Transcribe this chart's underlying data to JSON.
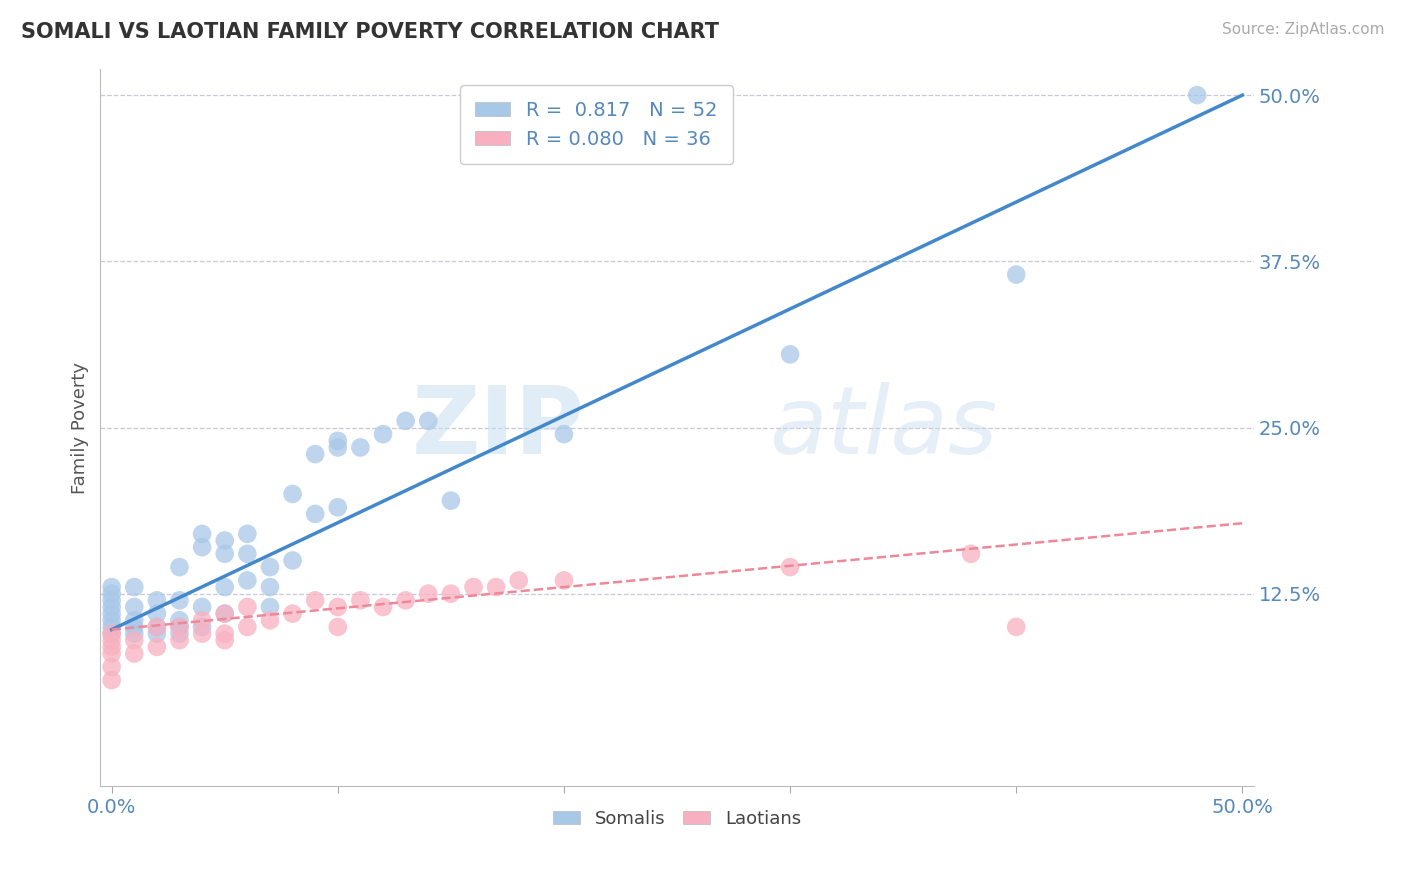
{
  "title": "SOMALI VS LAOTIAN FAMILY POVERTY CORRELATION CHART",
  "source_text": "Source: ZipAtlas.com",
  "ylabel": "Family Poverty",
  "xlim": [
    -0.005,
    0.505
  ],
  "ylim": [
    -0.02,
    0.52
  ],
  "ytick_positions": [
    0.125,
    0.25,
    0.375,
    0.5
  ],
  "ytick_labels": [
    "12.5%",
    "25.0%",
    "37.5%",
    "50.0%"
  ],
  "grid_color": "#c8c8d8",
  "background_color": "#ffffff",
  "somali_color": "#a8c8e8",
  "laotian_color": "#f8b0c0",
  "somali_line_color": "#4488cc",
  "laotian_line_color": "#ee8899",
  "somali_line_x0": 0.0,
  "somali_line_y0": 0.098,
  "somali_line_x1": 0.5,
  "somali_line_y1": 0.5,
  "laotian_line_x0": 0.0,
  "laotian_line_y0": 0.098,
  "laotian_line_x1": 0.5,
  "laotian_line_y1": 0.178,
  "R_somali": 0.817,
  "N_somali": 52,
  "R_laotian": 0.08,
  "N_laotian": 36,
  "watermark_zip": "ZIP",
  "watermark_atlas": "atlas",
  "tick_color": "#5588bb",
  "somali_scatter_x": [
    0.0,
    0.0,
    0.0,
    0.0,
    0.0,
    0.0,
    0.0,
    0.0,
    0.01,
    0.01,
    0.01,
    0.01,
    0.01,
    0.02,
    0.02,
    0.02,
    0.02,
    0.03,
    0.03,
    0.03,
    0.03,
    0.03,
    0.04,
    0.04,
    0.04,
    0.04,
    0.05,
    0.05,
    0.05,
    0.05,
    0.06,
    0.06,
    0.06,
    0.07,
    0.07,
    0.07,
    0.08,
    0.08,
    0.09,
    0.09,
    0.1,
    0.1,
    0.1,
    0.11,
    0.12,
    0.13,
    0.14,
    0.15,
    0.2,
    0.3,
    0.4,
    0.48
  ],
  "somali_scatter_y": [
    0.095,
    0.1,
    0.105,
    0.11,
    0.115,
    0.12,
    0.125,
    0.13,
    0.095,
    0.1,
    0.105,
    0.115,
    0.13,
    0.095,
    0.1,
    0.11,
    0.12,
    0.095,
    0.1,
    0.105,
    0.12,
    0.145,
    0.1,
    0.115,
    0.16,
    0.17,
    0.11,
    0.13,
    0.155,
    0.165,
    0.135,
    0.155,
    0.17,
    0.115,
    0.13,
    0.145,
    0.15,
    0.2,
    0.185,
    0.23,
    0.19,
    0.235,
    0.24,
    0.235,
    0.245,
    0.255,
    0.255,
    0.195,
    0.245,
    0.305,
    0.365,
    0.5
  ],
  "laotian_scatter_x": [
    0.0,
    0.0,
    0.0,
    0.0,
    0.0,
    0.0,
    0.01,
    0.01,
    0.02,
    0.02,
    0.03,
    0.03,
    0.04,
    0.04,
    0.05,
    0.05,
    0.05,
    0.06,
    0.06,
    0.07,
    0.08,
    0.09,
    0.1,
    0.1,
    0.11,
    0.12,
    0.13,
    0.14,
    0.15,
    0.16,
    0.17,
    0.18,
    0.2,
    0.3,
    0.38,
    0.4
  ],
  "laotian_scatter_y": [
    0.06,
    0.07,
    0.08,
    0.085,
    0.09,
    0.095,
    0.08,
    0.09,
    0.085,
    0.1,
    0.09,
    0.1,
    0.095,
    0.105,
    0.09,
    0.095,
    0.11,
    0.1,
    0.115,
    0.105,
    0.11,
    0.12,
    0.1,
    0.115,
    0.12,
    0.115,
    0.12,
    0.125,
    0.125,
    0.13,
    0.13,
    0.135,
    0.135,
    0.145,
    0.155,
    0.1
  ]
}
